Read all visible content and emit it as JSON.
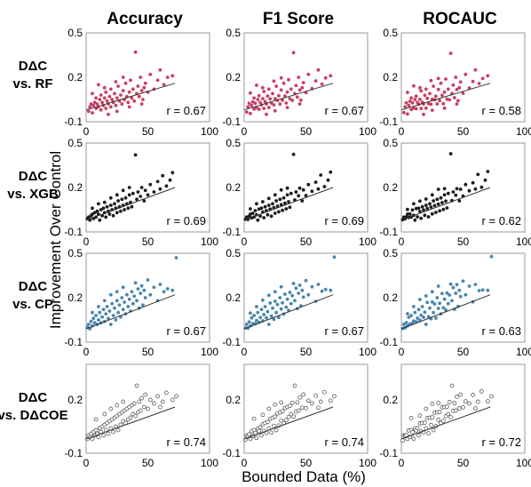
{
  "col_titles": [
    "Accuracy",
    "F1 Score",
    "ROCAUC"
  ],
  "row_labels": [
    [
      "DΔC",
      "vs. RF"
    ],
    [
      "DΔC",
      "vs. XGB"
    ],
    [
      "DΔC",
      "vs. CP"
    ],
    [
      "DΔC",
      "vs. DΔCOE"
    ]
  ],
  "y_axis_label": "Improvement Over Control",
  "x_axis_label": "Bounded Data (%)",
  "row_colors": [
    "#c93e64",
    "#1c1c1c",
    "#4a86ad",
    "#ffffff"
  ],
  "row_hollow": [
    false,
    false,
    false,
    true
  ],
  "chart_data": {
    "type": "scatter",
    "layout": "4x3 grid of scatter plots with linear fit lines",
    "x_ticks": [
      0,
      50,
      100
    ],
    "xlim": [
      0,
      100
    ],
    "row_y_ticks": [
      [
        "-0.1",
        "0.2",
        "0.5"
      ],
      [
        "-0.1",
        "0.2",
        "0.5"
      ],
      [
        "-0.1",
        "0.2",
        "0.5"
      ],
      [
        "-0.1",
        "0.2"
      ]
    ],
    "row_ylim": [
      [
        -0.1,
        0.5
      ],
      [
        -0.1,
        0.5
      ],
      [
        -0.1,
        0.5
      ],
      [
        -0.1,
        0.4
      ]
    ],
    "panels": [
      {
        "row": 0,
        "col": 0,
        "r_label": "r = 0.67",
        "fit": [
          [
            0,
            -0.02
          ],
          [
            72,
            0.16
          ]
        ]
      },
      {
        "row": 0,
        "col": 1,
        "r_label": "r = 0.67",
        "fit": [
          [
            0,
            -0.02
          ],
          [
            72,
            0.16
          ]
        ]
      },
      {
        "row": 0,
        "col": 2,
        "r_label": "r = 0.58",
        "fit": [
          [
            0,
            -0.02
          ],
          [
            72,
            0.16
          ]
        ]
      },
      {
        "row": 1,
        "col": 0,
        "r_label": "r = 0.69",
        "fit": [
          [
            0,
            -0.02
          ],
          [
            72,
            0.2
          ]
        ]
      },
      {
        "row": 1,
        "col": 1,
        "r_label": "r = 0.69",
        "fit": [
          [
            0,
            -0.02
          ],
          [
            72,
            0.2
          ]
        ]
      },
      {
        "row": 1,
        "col": 2,
        "r_label": "r = 0.62",
        "fit": [
          [
            0,
            -0.02
          ],
          [
            72,
            0.2
          ]
        ]
      },
      {
        "row": 2,
        "col": 0,
        "r_label": "r = 0.67",
        "fit": [
          [
            0,
            -0.01
          ],
          [
            72,
            0.22
          ]
        ]
      },
      {
        "row": 2,
        "col": 1,
        "r_label": "r = 0.67",
        "fit": [
          [
            0,
            -0.01
          ],
          [
            72,
            0.22
          ]
        ]
      },
      {
        "row": 2,
        "col": 2,
        "r_label": "r = 0.63",
        "fit": [
          [
            0,
            -0.01
          ],
          [
            72,
            0.22
          ]
        ]
      },
      {
        "row": 3,
        "col": 0,
        "r_label": "r = 0.74",
        "fit": [
          [
            0,
            -0.02
          ],
          [
            72,
            0.16
          ]
        ]
      },
      {
        "row": 3,
        "col": 1,
        "r_label": "r = 0.74",
        "fit": [
          [
            0,
            -0.02
          ],
          [
            72,
            0.16
          ]
        ]
      },
      {
        "row": 3,
        "col": 2,
        "r_label": "r = 0.72",
        "fit": [
          [
            0,
            -0.02
          ],
          [
            72,
            0.16
          ]
        ]
      }
    ],
    "series": [
      {
        "row": 0,
        "points": [
          [
            2,
            -0.03
          ],
          [
            3,
            0.0
          ],
          [
            4,
            0.02
          ],
          [
            5,
            -0.04
          ],
          [
            6,
            0.01
          ],
          [
            7,
            0.03
          ],
          [
            8,
            -0.01
          ],
          [
            8,
            0.06
          ],
          [
            9,
            0.02
          ],
          [
            10,
            0.0
          ],
          [
            11,
            0.05
          ],
          [
            12,
            -0.02
          ],
          [
            12,
            0.08
          ],
          [
            13,
            0.03
          ],
          [
            14,
            0.01
          ],
          [
            15,
            0.06
          ],
          [
            16,
            -0.01
          ],
          [
            16,
            0.1
          ],
          [
            17,
            0.04
          ],
          [
            18,
            0.02
          ],
          [
            19,
            0.07
          ],
          [
            20,
            0.0
          ],
          [
            20,
            0.12
          ],
          [
            21,
            0.05
          ],
          [
            22,
            0.03
          ],
          [
            23,
            0.09
          ],
          [
            24,
            0.01
          ],
          [
            25,
            0.06
          ],
          [
            26,
            0.14
          ],
          [
            27,
            0.04
          ],
          [
            28,
            0.08
          ],
          [
            29,
            0.02
          ],
          [
            30,
            0.11
          ],
          [
            31,
            0.05
          ],
          [
            32,
            0.16
          ],
          [
            33,
            0.07
          ],
          [
            34,
            0.03
          ],
          [
            35,
            0.1
          ],
          [
            36,
            0.18
          ],
          [
            37,
            0.06
          ],
          [
            38,
            0.12
          ],
          [
            39,
            0.04
          ],
          [
            40,
            0.37
          ],
          [
            41,
            0.09
          ],
          [
            42,
            0.14
          ],
          [
            43,
            0.07
          ],
          [
            44,
            0.2
          ],
          [
            45,
            0.11
          ],
          [
            46,
            0.05
          ],
          [
            47,
            0.13
          ],
          [
            48,
            0.16
          ],
          [
            50,
            0.1
          ],
          [
            52,
            0.22
          ],
          [
            55,
            0.12
          ],
          [
            58,
            0.18
          ],
          [
            60,
            0.25
          ],
          [
            63,
            0.15
          ],
          [
            66,
            0.2
          ],
          [
            70,
            0.21
          ],
          [
            5,
            0.09
          ],
          [
            10,
            0.15
          ],
          [
            15,
            0.13
          ],
          [
            24,
            0.17
          ],
          [
            30,
            0.2
          ],
          [
            18,
            -0.05
          ],
          [
            25,
            -0.03
          ],
          [
            35,
            0.0
          ],
          [
            45,
            0.02
          ]
        ]
      },
      {
        "row": 1,
        "points": [
          [
            1,
            -0.01
          ],
          [
            2,
            0.0
          ],
          [
            3,
            -0.02
          ],
          [
            4,
            0.01
          ],
          [
            5,
            0.02
          ],
          [
            6,
            -0.01
          ],
          [
            7,
            0.03
          ],
          [
            8,
            0.0
          ],
          [
            9,
            0.04
          ],
          [
            10,
            0.02
          ],
          [
            11,
            -0.02
          ],
          [
            12,
            0.05
          ],
          [
            13,
            0.01
          ],
          [
            14,
            0.06
          ],
          [
            15,
            0.03
          ],
          [
            16,
            0.0
          ],
          [
            17,
            0.07
          ],
          [
            18,
            0.04
          ],
          [
            19,
            0.02
          ],
          [
            20,
            0.08
          ],
          [
            21,
            0.05
          ],
          [
            22,
            0.01
          ],
          [
            23,
            0.09
          ],
          [
            24,
            0.06
          ],
          [
            25,
            0.03
          ],
          [
            26,
            0.11
          ],
          [
            27,
            0.07
          ],
          [
            28,
            0.04
          ],
          [
            29,
            0.12
          ],
          [
            30,
            0.08
          ],
          [
            31,
            0.05
          ],
          [
            32,
            0.13
          ],
          [
            33,
            0.09
          ],
          [
            34,
            0.06
          ],
          [
            35,
            0.15
          ],
          [
            36,
            0.1
          ],
          [
            37,
            0.07
          ],
          [
            38,
            0.16
          ],
          [
            40,
            0.42
          ],
          [
            41,
            0.12
          ],
          [
            42,
            0.17
          ],
          [
            44,
            0.14
          ],
          [
            45,
            0.2
          ],
          [
            47,
            0.11
          ],
          [
            48,
            0.18
          ],
          [
            50,
            0.15
          ],
          [
            52,
            0.22
          ],
          [
            55,
            0.17
          ],
          [
            58,
            0.24
          ],
          [
            60,
            0.19
          ],
          [
            62,
            0.28
          ],
          [
            65,
            0.21
          ],
          [
            68,
            0.25
          ],
          [
            70,
            0.3
          ],
          [
            5,
            0.06
          ],
          [
            10,
            0.09
          ],
          [
            15,
            0.1
          ],
          [
            20,
            0.13
          ],
          [
            25,
            0.15
          ],
          [
            30,
            0.18
          ],
          [
            35,
            0.2
          ]
        ]
      },
      {
        "row": 2,
        "points": [
          [
            1,
            0.0
          ],
          [
            2,
            0.02
          ],
          [
            3,
            -0.01
          ],
          [
            4,
            0.04
          ],
          [
            5,
            0.01
          ],
          [
            6,
            0.06
          ],
          [
            7,
            0.03
          ],
          [
            8,
            0.08
          ],
          [
            9,
            0.02
          ],
          [
            10,
            0.05
          ],
          [
            11,
            0.1
          ],
          [
            12,
            0.03
          ],
          [
            13,
            0.07
          ],
          [
            14,
            0.12
          ],
          [
            15,
            0.04
          ],
          [
            16,
            0.09
          ],
          [
            17,
            0.14
          ],
          [
            18,
            0.06
          ],
          [
            19,
            0.11
          ],
          [
            20,
            0.02
          ],
          [
            21,
            0.16
          ],
          [
            22,
            0.08
          ],
          [
            23,
            0.13
          ],
          [
            24,
            0.05
          ],
          [
            25,
            0.18
          ],
          [
            26,
            0.1
          ],
          [
            27,
            0.15
          ],
          [
            28,
            0.07
          ],
          [
            29,
            0.2
          ],
          [
            30,
            0.12
          ],
          [
            31,
            0.17
          ],
          [
            32,
            0.09
          ],
          [
            33,
            0.22
          ],
          [
            34,
            0.14
          ],
          [
            35,
            0.19
          ],
          [
            36,
            0.11
          ],
          [
            37,
            0.24
          ],
          [
            38,
            0.16
          ],
          [
            39,
            0.21
          ],
          [
            40,
            0.3
          ],
          [
            41,
            0.18
          ],
          [
            42,
            0.26
          ],
          [
            43,
            0.13
          ],
          [
            44,
            0.23
          ],
          [
            45,
            0.28
          ],
          [
            46,
            0.15
          ],
          [
            47,
            0.25
          ],
          [
            48,
            0.2
          ],
          [
            50,
            0.32
          ],
          [
            52,
            0.22
          ],
          [
            55,
            0.27
          ],
          [
            58,
            0.18
          ],
          [
            60,
            0.29
          ],
          [
            63,
            0.24
          ],
          [
            66,
            0.26
          ],
          [
            70,
            0.25
          ],
          [
            73,
            0.47
          ],
          [
            5,
            0.1
          ],
          [
            10,
            0.14
          ],
          [
            15,
            0.18
          ],
          [
            20,
            0.22
          ],
          [
            25,
            0.24
          ],
          [
            30,
            0.27
          ]
        ]
      },
      {
        "row": 3,
        "points": [
          [
            1,
            -0.02
          ],
          [
            2,
            0.0
          ],
          [
            3,
            -0.01
          ],
          [
            4,
            0.01
          ],
          [
            5,
            -0.02
          ],
          [
            6,
            0.02
          ],
          [
            7,
            0.0
          ],
          [
            8,
            0.03
          ],
          [
            9,
            0.01
          ],
          [
            10,
            -0.01
          ],
          [
            11,
            0.04
          ],
          [
            12,
            0.02
          ],
          [
            13,
            0.05
          ],
          [
            14,
            0.0
          ],
          [
            15,
            0.06
          ],
          [
            16,
            0.03
          ],
          [
            17,
            0.07
          ],
          [
            18,
            0.01
          ],
          [
            19,
            0.08
          ],
          [
            20,
            0.04
          ],
          [
            21,
            0.09
          ],
          [
            22,
            0.02
          ],
          [
            23,
            0.1
          ],
          [
            24,
            0.05
          ],
          [
            25,
            0.11
          ],
          [
            26,
            0.03
          ],
          [
            27,
            0.12
          ],
          [
            28,
            0.06
          ],
          [
            29,
            0.13
          ],
          [
            30,
            0.08
          ],
          [
            31,
            0.14
          ],
          [
            32,
            0.07
          ],
          [
            33,
            0.15
          ],
          [
            34,
            0.09
          ],
          [
            35,
            0.16
          ],
          [
            36,
            0.1
          ],
          [
            37,
            0.17
          ],
          [
            38,
            0.12
          ],
          [
            39,
            0.18
          ],
          [
            40,
            0.11
          ],
          [
            41,
            0.28
          ],
          [
            42,
            0.13
          ],
          [
            43,
            0.19
          ],
          [
            44,
            0.14
          ],
          [
            45,
            0.21
          ],
          [
            47,
            0.16
          ],
          [
            48,
            0.23
          ],
          [
            50,
            0.15
          ],
          [
            52,
            0.2
          ],
          [
            55,
            0.18
          ],
          [
            58,
            0.22
          ],
          [
            60,
            0.16
          ],
          [
            62,
            0.19
          ],
          [
            65,
            0.24
          ],
          [
            70,
            0.2
          ],
          [
            73,
            0.22
          ],
          [
            8,
            0.09
          ],
          [
            15,
            0.12
          ],
          [
            20,
            0.15
          ],
          [
            25,
            0.17
          ],
          [
            30,
            0.19
          ]
        ]
      }
    ]
  }
}
